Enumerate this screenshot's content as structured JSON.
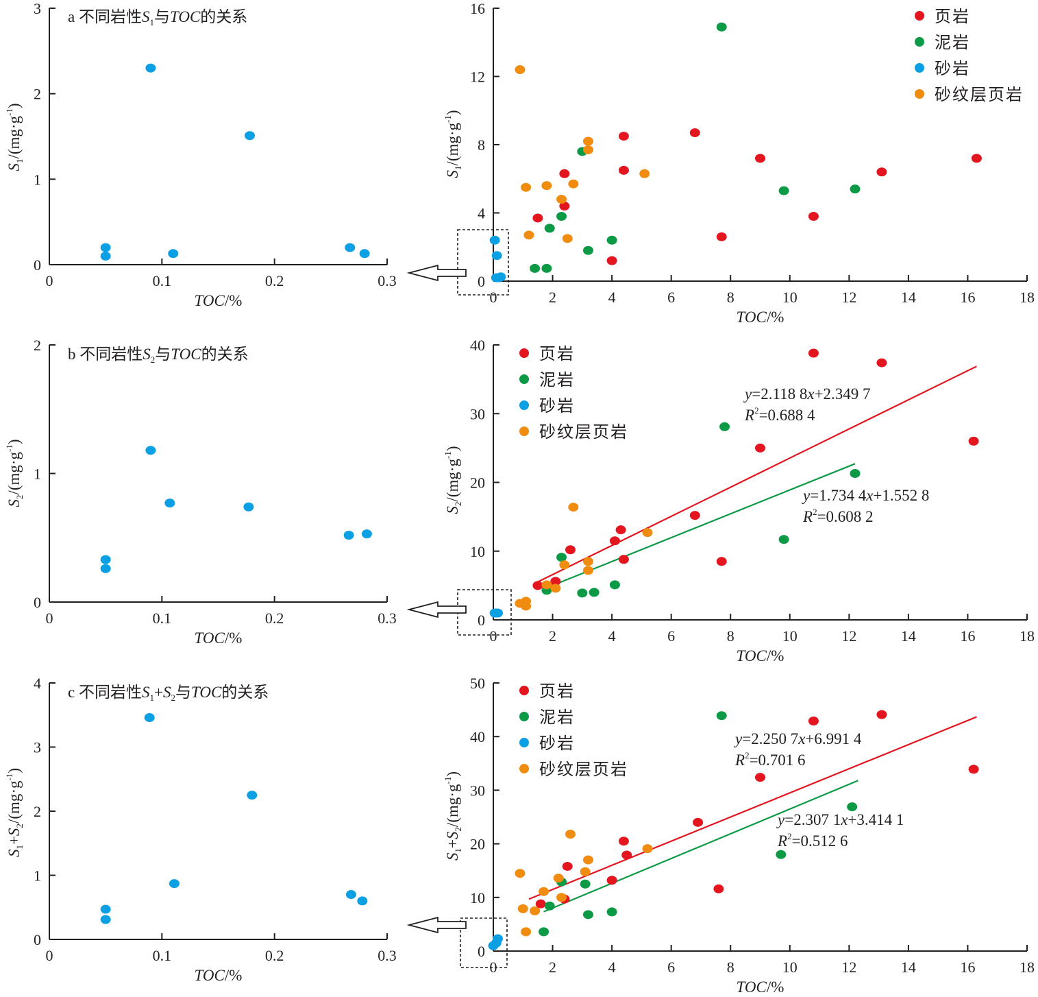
{
  "colors": {
    "shale": "#e3151f",
    "mudstone": "#0c9a46",
    "sandstone": "#0b9fe3",
    "laminated": "#f08c10",
    "axis": "#231f20"
  },
  "legend": [
    "页岩",
    "泥岩",
    "砂岩",
    "砂纹层页岩"
  ],
  "x_label": "TOC/%",
  "chart_data": [
    {
      "type": "scatter",
      "panel": "a",
      "title_prefix": "a 不同岩性",
      "title_var": "S",
      "title_sub": "1",
      "title_suffix": "与",
      "title_toc": "TOC",
      "title_end": "的关系",
      "ylabel_var": "S",
      "ylabel_sub": "1",
      "ylabel_unit": "/(mg·g",
      "ylabel_exp": "-1",
      "ylabel_close": ")",
      "xlim": [
        0,
        0.3
      ],
      "ylim": [
        0,
        3
      ],
      "xticks": [
        "0",
        "0.1",
        "0.2",
        "0.3"
      ],
      "yticks": [
        "0",
        "1",
        "2",
        "3"
      ],
      "series": [
        {
          "name": "砂岩",
          "points": [
            [
              0.05,
              0.2
            ],
            [
              0.05,
              0.1
            ],
            [
              0.09,
              2.3
            ],
            [
              0.11,
              0.13
            ],
            [
              0.178,
              1.51
            ],
            [
              0.267,
              0.2
            ],
            [
              0.28,
              0.13
            ]
          ]
        }
      ]
    },
    {
      "type": "scatter",
      "panel": "a-right",
      "xlim": [
        0,
        18
      ],
      "ylim": [
        0,
        16
      ],
      "xticks": [
        "0",
        "2",
        "4",
        "6",
        "8",
        "10",
        "12",
        "14",
        "16",
        "18"
      ],
      "yticks": [
        "0",
        "4",
        "8",
        "12",
        "16"
      ],
      "ylabel_var": "S",
      "ylabel_sub": "1",
      "ylabel_unit": "/(mg·g",
      "ylabel_exp": "-1",
      "ylabel_close": ")",
      "series": [
        {
          "name": "页岩",
          "points": [
            [
              1.5,
              3.7
            ],
            [
              2.4,
              6.3
            ],
            [
              2.4,
              4.4
            ],
            [
              4.0,
              1.2
            ],
            [
              4.4,
              6.5
            ],
            [
              4.4,
              8.5
            ],
            [
              6.8,
              8.7
            ],
            [
              7.7,
              2.6
            ],
            [
              9.0,
              7.2
            ],
            [
              10.8,
              3.8
            ],
            [
              13.1,
              6.4
            ],
            [
              16.3,
              7.2
            ]
          ]
        },
        {
          "name": "泥岩",
          "points": [
            [
              1.4,
              0.75
            ],
            [
              1.8,
              0.75
            ],
            [
              1.9,
              3.1
            ],
            [
              2.3,
              3.8
            ],
            [
              3.0,
              7.6
            ],
            [
              3.2,
              1.8
            ],
            [
              4.0,
              2.4
            ],
            [
              7.7,
              14.9
            ],
            [
              9.8,
              5.3
            ],
            [
              12.2,
              5.4
            ]
          ]
        },
        {
          "name": "砂岩",
          "points": [
            [
              0.05,
              2.4
            ],
            [
              0.12,
              1.5
            ],
            [
              0.1,
              0.2
            ],
            [
              0.2,
              0.2
            ],
            [
              0.25,
              0.25
            ]
          ]
        },
        {
          "name": "砂纹层页岩",
          "points": [
            [
              0.9,
              12.4
            ],
            [
              1.1,
              5.5
            ],
            [
              1.2,
              2.7
            ],
            [
              1.8,
              5.6
            ],
            [
              2.3,
              4.8
            ],
            [
              2.5,
              2.5
            ],
            [
              2.7,
              5.7
            ],
            [
              3.2,
              8.2
            ],
            [
              3.2,
              7.7
            ],
            [
              5.1,
              6.3
            ]
          ]
        }
      ]
    },
    {
      "type": "scatter",
      "panel": "b",
      "title_prefix": "b 不同岩性",
      "title_var": "S",
      "title_sub": "2",
      "title_suffix": "与",
      "title_toc": "TOC",
      "title_end": "的关系",
      "ylabel_var": "S",
      "ylabel_sub": "2",
      "ylabel_unit": "/(mg·g",
      "ylabel_exp": "-1",
      "ylabel_close": ")",
      "xlim": [
        0,
        0.3
      ],
      "ylim": [
        0,
        2
      ],
      "xticks": [
        "0",
        "0.1",
        "0.2",
        "0.3"
      ],
      "yticks": [
        "0",
        "1",
        "2"
      ],
      "series": [
        {
          "name": "砂岩",
          "points": [
            [
              0.05,
              0.33
            ],
            [
              0.05,
              0.26
            ],
            [
              0.09,
              1.18
            ],
            [
              0.107,
              0.77
            ],
            [
              0.177,
              0.74
            ],
            [
              0.266,
              0.52
            ],
            [
              0.282,
              0.53
            ]
          ]
        }
      ]
    },
    {
      "type": "scatter",
      "panel": "b-right",
      "xlim": [
        0,
        18
      ],
      "ylim": [
        0,
        40
      ],
      "xticks": [
        "0",
        "2",
        "4",
        "6",
        "8",
        "10",
        "12",
        "14",
        "16",
        "18"
      ],
      "yticks": [
        "0",
        "10",
        "20",
        "30",
        "40"
      ],
      "ylabel_var": "S",
      "ylabel_sub": "2",
      "ylabel_unit": "/(mg·g",
      "ylabel_exp": "-1",
      "ylabel_close": ")",
      "series": [
        {
          "name": "页岩",
          "points": [
            [
              1.5,
              5.0
            ],
            [
              2.1,
              5.6
            ],
            [
              2.6,
              10.2
            ],
            [
              4.1,
              11.5
            ],
            [
              4.3,
              13.1
            ],
            [
              4.4,
              8.8
            ],
            [
              6.8,
              15.2
            ],
            [
              7.7,
              8.5
            ],
            [
              9.0,
              25.0
            ],
            [
              10.8,
              38.8
            ],
            [
              13.1,
              37.4
            ],
            [
              16.2,
              26.0
            ]
          ]
        },
        {
          "name": "泥岩",
          "points": [
            [
              1.8,
              4.3
            ],
            [
              2.3,
              9.1
            ],
            [
              3.0,
              3.9
            ],
            [
              3.4,
              4.0
            ],
            [
              4.1,
              5.1
            ],
            [
              7.8,
              28.1
            ],
            [
              9.8,
              11.7
            ],
            [
              12.2,
              21.3
            ]
          ]
        },
        {
          "name": "砂岩",
          "points": [
            [
              0.05,
              1.0
            ],
            [
              0.1,
              1.0
            ],
            [
              0.15,
              1.0
            ]
          ]
        },
        {
          "name": "砂纹层页岩",
          "points": [
            [
              0.9,
              2.4
            ],
            [
              1.1,
              2.7
            ],
            [
              1.1,
              2.0
            ],
            [
              1.8,
              5.1
            ],
            [
              2.1,
              4.6
            ],
            [
              2.4,
              8.0
            ],
            [
              2.7,
              16.4
            ],
            [
              3.2,
              8.5
            ],
            [
              3.2,
              7.2
            ],
            [
              5.2,
              12.7
            ]
          ]
        }
      ],
      "fits": [
        {
          "series": "页岩",
          "slope": 2.1188,
          "intercept": 2.3497,
          "x": [
            1.5,
            16.3
          ],
          "eq": "=2.118 8",
          "eq_tail": "+2.349 7",
          "r2": "=0.688 4"
        },
        {
          "series": "泥岩",
          "slope": 1.7344,
          "intercept": 1.5528,
          "x": [
            1.7,
            12.2
          ],
          "eq": "=1.734 4",
          "eq_tail": "+1.552 8",
          "r2": "=0.608 2"
        }
      ]
    },
    {
      "type": "scatter",
      "panel": "c",
      "title_prefix": "c 不同岩性",
      "title_var": "S",
      "title_sub": "1",
      "title_plus": "+",
      "title_var2": "S",
      "title_sub2": "2",
      "title_suffix": "与",
      "title_toc": "TOC",
      "title_end": "的关系",
      "ylabel_var": "S",
      "ylabel_sub": "1",
      "ylabel_plus": "+",
      "ylabel_var2": "S",
      "ylabel_sub2": "2",
      "ylabel_unit": "/(mg·g",
      "ylabel_exp": "-1",
      "ylabel_close": ")",
      "xlim": [
        0,
        0.3
      ],
      "ylim": [
        0,
        4
      ],
      "xticks": [
        "0",
        "0.1",
        "0.2",
        "0.3"
      ],
      "yticks": [
        "0",
        "1",
        "2",
        "3",
        "4"
      ],
      "series": [
        {
          "name": "砂岩",
          "points": [
            [
              0.05,
              0.47
            ],
            [
              0.05,
              0.31
            ],
            [
              0.089,
              3.46
            ],
            [
              0.111,
              0.87
            ],
            [
              0.18,
              2.25
            ],
            [
              0.268,
              0.7
            ],
            [
              0.278,
              0.6
            ]
          ]
        }
      ]
    },
    {
      "type": "scatter",
      "panel": "c-right",
      "xlim": [
        0,
        18
      ],
      "ylim": [
        0,
        50
      ],
      "xticks": [
        "0",
        "2",
        "4",
        "6",
        "8",
        "10",
        "12",
        "14",
        "16",
        "18"
      ],
      "yticks": [
        "0",
        "10",
        "20",
        "30",
        "40",
        "50"
      ],
      "ylabel_var": "S",
      "ylabel_sub": "1",
      "ylabel_plus": "+",
      "ylabel_var2": "S",
      "ylabel_sub2": "2",
      "ylabel_unit": "/(mg·g",
      "ylabel_exp": "-1",
      "ylabel_close": ")",
      "series": [
        {
          "name": "页岩",
          "points": [
            [
              1.6,
              8.8
            ],
            [
              2.4,
              9.7
            ],
            [
              2.5,
              15.8
            ],
            [
              4.0,
              13.2
            ],
            [
              4.4,
              20.5
            ],
            [
              4.5,
              17.9
            ],
            [
              6.9,
              24.0
            ],
            [
              7.6,
              11.6
            ],
            [
              9.0,
              32.4
            ],
            [
              10.8,
              42.9
            ],
            [
              13.1,
              44.1
            ],
            [
              16.2,
              33.9
            ]
          ]
        },
        {
          "name": "泥岩",
          "points": [
            [
              1.7,
              3.6
            ],
            [
              1.9,
              8.4
            ],
            [
              2.3,
              12.9
            ],
            [
              3.1,
              12.5
            ],
            [
              3.2,
              6.8
            ],
            [
              4.0,
              7.3
            ],
            [
              7.7,
              43.9
            ],
            [
              9.7,
              18.0
            ],
            [
              12.1,
              26.9
            ]
          ]
        },
        {
          "name": "砂岩",
          "points": [
            [
              0.0,
              1.0
            ],
            [
              0.1,
              1.5
            ],
            [
              0.15,
              2.3
            ]
          ]
        },
        {
          "name": "砂纹层页岩",
          "points": [
            [
              0.9,
              14.5
            ],
            [
              1.0,
              7.9
            ],
            [
              1.1,
              3.6
            ],
            [
              1.4,
              7.5
            ],
            [
              1.7,
              11.1
            ],
            [
              2.2,
              13.6
            ],
            [
              2.3,
              10.0
            ],
            [
              2.6,
              21.8
            ],
            [
              3.1,
              14.8
            ],
            [
              3.2,
              17.0
            ],
            [
              5.2,
              19.1
            ]
          ]
        }
      ],
      "fits": [
        {
          "series": "页岩",
          "slope": 2.2507,
          "intercept": 6.9914,
          "x": [
            1.2,
            16.3
          ],
          "eq": "=2.250 7",
          "eq_tail": "+6.991 4",
          "r2": "=0.701 6"
        },
        {
          "series": "泥岩",
          "slope": 2.3071,
          "intercept": 3.4141,
          "x": [
            1.7,
            12.3
          ],
          "eq": "=2.307 1",
          "eq_tail": "+3.414 1",
          "r2": "=0.512 6"
        }
      ]
    }
  ]
}
